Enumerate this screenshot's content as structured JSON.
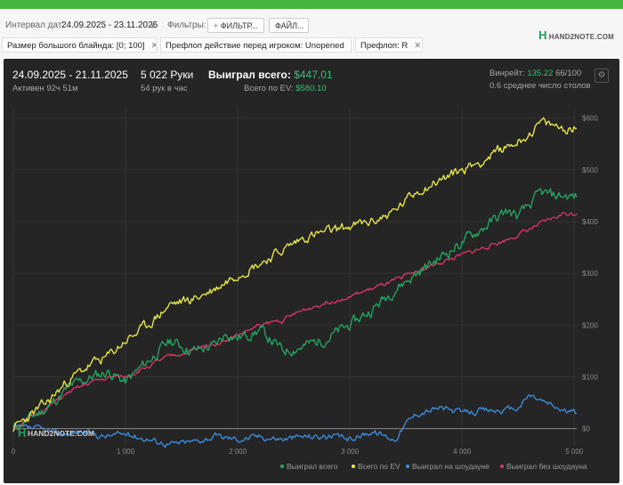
{
  "filters": {
    "interval_label": "Интервал дат:",
    "interval_value": "24.09.2025 - 23.11.2025",
    "filters_label": "Фильтры:",
    "filter_button": "ФИЛЬТР...",
    "file_button": "ФАЙЛ...",
    "chips": [
      {
        "label": "Размер большого блайнда: [0; 100]"
      },
      {
        "label": "Префлоп действие перед игроком: Unopened"
      },
      {
        "label": "Префлоп: R"
      }
    ]
  },
  "logo": {
    "text": "HAND2NOTE.COM"
  },
  "stats": {
    "date_range": "24.09.2025 - 21.11.2025",
    "active": "Активен 92ч 51м",
    "hands": "5 022 Руки",
    "hands_per_hour": "54 рук в час",
    "won_label": "Выиграл всего:",
    "won_value": "$447.01",
    "ev_label": "Всего по EV:",
    "ev_value": "$580.10",
    "winrate_label": "Винрейт:",
    "winrate_value": "135.22",
    "winrate_suffix": "66/100",
    "tables": "0.6 среднее число столов"
  },
  "chart_data": {
    "type": "line",
    "x_ticks": [
      "0",
      "1 000",
      "2 000",
      "3 000",
      "4 000",
      "5 000"
    ],
    "y_ticks": [
      "$0",
      "$100",
      "$200",
      "$300",
      "$400",
      "$500",
      "$600"
    ],
    "xlim": [
      0,
      5022
    ],
    "ylim": [
      -35,
      620
    ],
    "grid": true,
    "legend_position": "bottom-right",
    "colors": {
      "won": "#1fab63",
      "ev": "#f0ee3e",
      "showdown": "#3b8fe2",
      "nonshowdown": "#e0356a"
    },
    "series": [
      {
        "name": "Выиграл всего",
        "key": "won",
        "x": [
          0,
          300,
          500,
          700,
          850,
          1000,
          1200,
          1400,
          1600,
          1800,
          1900,
          2000,
          2200,
          2400,
          2600,
          2800,
          3000,
          3200,
          3400,
          3600,
          3800,
          4000,
          4200,
          4400,
          4500,
          4600,
          4700,
          4800,
          4900,
          5022
        ],
        "y": [
          0,
          40,
          80,
          100,
          110,
          90,
          130,
          170,
          150,
          160,
          185,
          175,
          190,
          150,
          160,
          175,
          200,
          230,
          270,
          300,
          330,
          360,
          390,
          420,
          410,
          430,
          455,
          450,
          450,
          447
        ]
      },
      {
        "name": "Всего по EV",
        "key": "ev",
        "x": [
          0,
          300,
          500,
          700,
          850,
          1000,
          1200,
          1400,
          1600,
          1800,
          2000,
          2200,
          2400,
          2600,
          2800,
          3000,
          3200,
          3400,
          3600,
          3800,
          4000,
          4200,
          4400,
          4500,
          4600,
          4700,
          4800,
          4900,
          5022
        ],
        "y": [
          0,
          50,
          95,
          125,
          140,
          170,
          200,
          240,
          250,
          270,
          300,
          320,
          345,
          370,
          380,
          390,
          400,
          420,
          460,
          480,
          500,
          520,
          545,
          555,
          570,
          590,
          585,
          580,
          580
        ]
      },
      {
        "name": "Выиграл на шоудауне",
        "key": "showdown",
        "x": [
          0,
          200,
          400,
          600,
          800,
          1000,
          1200,
          1400,
          1600,
          1800,
          2000,
          2200,
          2400,
          2600,
          2800,
          3000,
          3200,
          3400,
          3500,
          3600,
          3800,
          4000,
          4200,
          4400,
          4500,
          4600,
          4700,
          4800,
          4900,
          5022
        ],
        "y": [
          0,
          0,
          -10,
          -5,
          -15,
          -10,
          -20,
          -30,
          -25,
          -15,
          -20,
          -15,
          -20,
          -15,
          -15,
          -20,
          -5,
          -20,
          10,
          30,
          40,
          30,
          35,
          35,
          40,
          65,
          55,
          45,
          35,
          30
        ]
      },
      {
        "name": "Выиграл без шоудауна",
        "key": "nonshowdown",
        "x": [
          0,
          300,
          500,
          700,
          900,
          1000,
          1200,
          1400,
          1600,
          1800,
          2000,
          2200,
          2400,
          2600,
          2800,
          3000,
          3200,
          3400,
          3600,
          3800,
          4000,
          4200,
          4400,
          4600,
          4800,
          4900,
          5022
        ],
        "y": [
          0,
          40,
          70,
          90,
          100,
          100,
          120,
          140,
          150,
          165,
          180,
          200,
          210,
          230,
          245,
          255,
          270,
          285,
          305,
          320,
          335,
          350,
          365,
          385,
          405,
          415,
          415
        ]
      }
    ]
  }
}
